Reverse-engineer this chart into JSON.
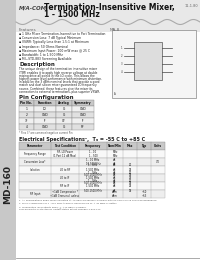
{
  "page_bg": "#f2f2f2",
  "content_bg": "#ffffff",
  "sidebar_bg": "#c8c8c8",
  "header_bg": "#e8e8e8",
  "title_company": "M/A-COM",
  "title_line1": "Termination-Insensitive Mixer,",
  "title_line2": "1 - 1500 MHz",
  "part_number_vertical": "MD-160",
  "doc_number": "11-1.80",
  "features_title": "Features",
  "features": [
    "1 GHz Mixer Termination-Insensitive to Port Termination",
    "Conversion Loss: 7 dB Typical Minimum",
    "VSWR: Typically Less than 1.5:1 at Minimum",
    "Impedance: 50 Ohms Nominal",
    "Maximum Input Power: 100 mW max @ 25 C",
    "Bandwidth: 1 to 1,500 MHz",
    "MIL-STD-883 Screening Available"
  ],
  "description_title": "Description",
  "description_text": "The unique design of the termination insensitive mixer (TIM) enables it to apply high reverse voltage at double mixing drive all points in the LO cycle. This allows the highest power level performance with minimum distortion. In addition the 3 dBm nominal levels that provide a good match and dual silicon mixer guaranteed LO frequency source. Combined, these features give the mixer its connection to external terminations, plus superior VSWR.",
  "package_label": "MA-8",
  "pin_config_title": "Pin Configuration",
  "pin_table_headers": [
    "Pin No.",
    "Function",
    "Analog",
    "Symmetry"
  ],
  "pin_table_rows": [
    [
      "1",
      "LO",
      "G",
      "GND"
    ],
    [
      "2",
      "GND",
      "G",
      "GND"
    ],
    [
      "3*",
      "IF",
      "G*",
      "IF"
    ],
    [
      "4",
      "GND",
      "G",
      "RF"
    ]
  ],
  "pin_note": "* Pins 3* are common/negative current Pin",
  "elec_spec_title": "Electrical Specifications",
  "elec_spec_super": "1",
  "elec_spec_temp": "Tₐ = -55 C to +85 C",
  "elec_table_headers": [
    "Parameter",
    "Test Condition",
    "Frequency",
    "Nom/Min",
    "Max",
    "Typ",
    "Units"
  ],
  "elec_table_rows": [
    [
      "Frequency Range",
      "RF, LO Power\n(1 Port 12 dB Max)",
      "1 - 10\n1 - 500",
      "MHz\nMHz",
      "",
      "",
      ""
    ],
    [
      "Conversion Loss*",
      "",
      "1 - 10 MHz\n10-500 MHz",
      "dB\ndB",
      "",
      "",
      "7.0"
    ],
    [
      "Isolation",
      "LO to RF",
      "1 - GHz\n1-500 MHz\n500-1500 MHz",
      "dB\ndB\ndB",
      "20\n25\n18",
      "",
      ""
    ],
    [
      "",
      "LO to IF",
      "1 - GHz\n1-500 MHz\n500-1500 MHz",
      "dB\ndB\ndB",
      "20\n25\n18",
      "",
      ""
    ],
    [
      "",
      "RF to IF",
      "1 - GHz\n1-500 MHz\n500-1500 MHz",
      "dB\ndB\ndB",
      "20\n25\n18",
      "",
      ""
    ],
    [
      "RF Input",
      "+1dB Compression *\n+1dB Cross-null unless",
      "",
      "dBm\ndBm",
      "",
      "+10\n+13",
      ""
    ]
  ],
  "footnotes": [
    "1. All specifications apply when operated at +5 dBm maximum LO power with 50 ohm source and load impedance.",
    "2. For IF Frequencies of 1 - 500 MHz, typically minimum 50 Ω, + 40 dBm or better.",
    "3. Termination Insensitivity apply @ +13 dBm LO power.",
    "This product is protected by United States Patent Number 4,324,272"
  ]
}
